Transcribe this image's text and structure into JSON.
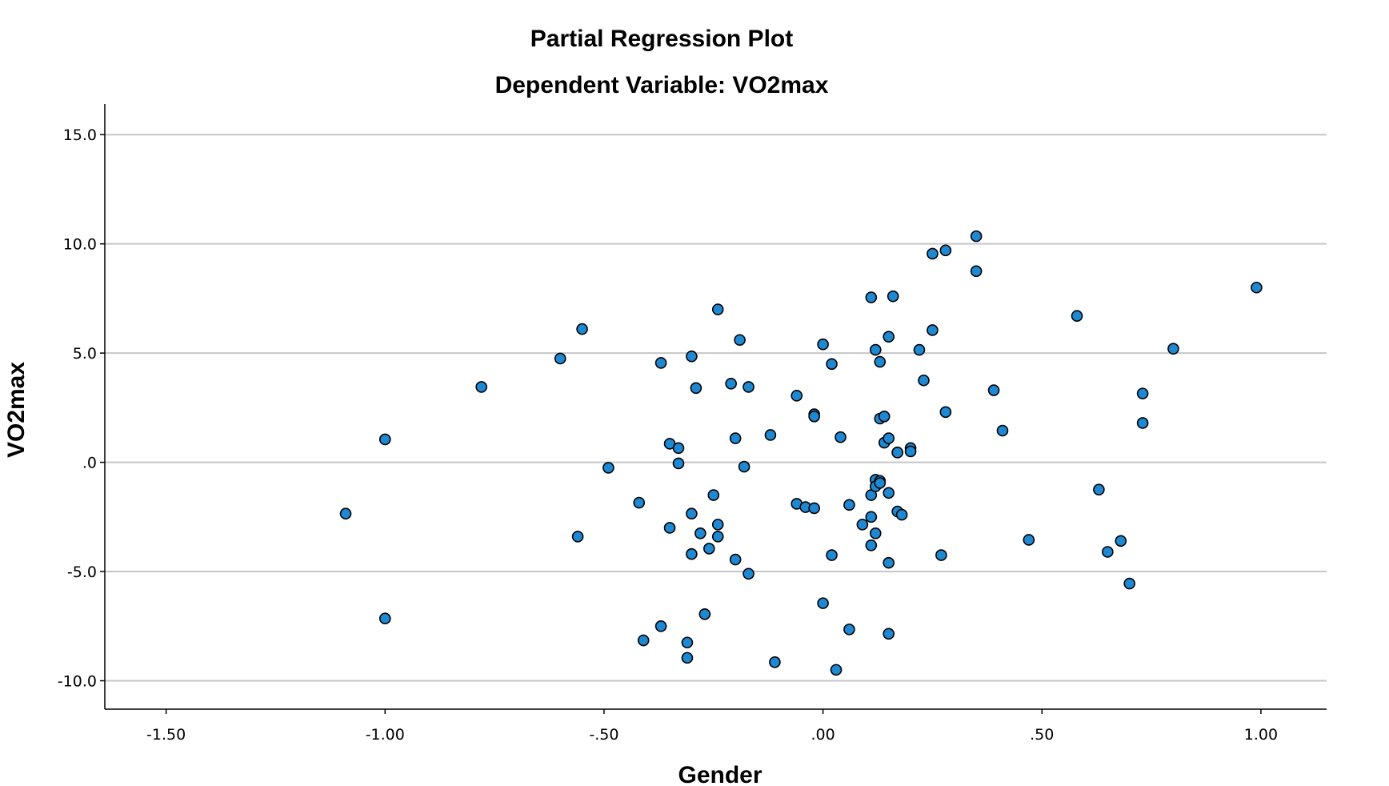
{
  "chart_data": {
    "type": "scatter",
    "title": "Partial Regression Plot",
    "subtitle": "Dependent Variable: VO2max",
    "xlabel": "Gender",
    "ylabel": "VO2max",
    "xlim": [
      -1.64,
      1.15
    ],
    "ylim": [
      -11.3,
      16.4
    ],
    "x_ticks": [
      -1.5,
      -1.0,
      -0.5,
      0.0,
      0.5,
      1.0
    ],
    "x_tick_labels": [
      "-1.50",
      "-1.00",
      "-.50",
      ".00",
      ".50",
      "1.00"
    ],
    "y_ticks": [
      -10,
      -5,
      0,
      5,
      10,
      15
    ],
    "y_tick_labels": [
      "-10.0",
      "-5.0",
      ".0",
      "5.0",
      "10.0",
      "15.0"
    ],
    "grid": "horizontal",
    "point_color": "#1e88d2",
    "points": [
      [
        -1.09,
        -2.35
      ],
      [
        -1.0,
        1.05
      ],
      [
        -1.0,
        -7.15
      ],
      [
        -0.78,
        3.45
      ],
      [
        -0.6,
        4.75
      ],
      [
        -0.56,
        -3.4
      ],
      [
        -0.55,
        6.1
      ],
      [
        -0.49,
        -0.25
      ],
      [
        -0.42,
        -1.85
      ],
      [
        -0.41,
        -8.15
      ],
      [
        -0.37,
        4.55
      ],
      [
        -0.37,
        -7.5
      ],
      [
        -0.35,
        0.85
      ],
      [
        -0.35,
        -3.0
      ],
      [
        -0.33,
        0.65
      ],
      [
        -0.33,
        -0.05
      ],
      [
        -0.31,
        -8.25
      ],
      [
        -0.31,
        -8.95
      ],
      [
        -0.3,
        -4.2
      ],
      [
        -0.3,
        -2.35
      ],
      [
        -0.3,
        4.85
      ],
      [
        -0.29,
        3.4
      ],
      [
        -0.28,
        -3.25
      ],
      [
        -0.27,
        -6.95
      ],
      [
        -0.26,
        -3.95
      ],
      [
        -0.25,
        -1.5
      ],
      [
        -0.24,
        7.0
      ],
      [
        -0.24,
        -2.85
      ],
      [
        -0.24,
        -3.4
      ],
      [
        -0.21,
        3.6
      ],
      [
        -0.2,
        1.1
      ],
      [
        -0.2,
        -4.45
      ],
      [
        -0.19,
        5.6
      ],
      [
        -0.18,
        -0.2
      ],
      [
        -0.17,
        3.45
      ],
      [
        -0.17,
        -5.1
      ],
      [
        -0.12,
        1.25
      ],
      [
        -0.11,
        -9.15
      ],
      [
        -0.06,
        -1.9
      ],
      [
        -0.06,
        3.05
      ],
      [
        -0.04,
        -2.05
      ],
      [
        -0.02,
        2.2
      ],
      [
        -0.02,
        2.1
      ],
      [
        -0.02,
        -2.1
      ],
      [
        0.0,
        5.4
      ],
      [
        0.0,
        -6.45
      ],
      [
        0.02,
        4.5
      ],
      [
        0.02,
        -4.25
      ],
      [
        0.03,
        -9.5
      ],
      [
        0.04,
        1.15
      ],
      [
        0.06,
        -1.95
      ],
      [
        0.06,
        -7.65
      ],
      [
        0.09,
        -2.85
      ],
      [
        0.11,
        7.55
      ],
      [
        0.11,
        -2.5
      ],
      [
        0.11,
        -3.8
      ],
      [
        0.11,
        -1.5
      ],
      [
        0.12,
        -3.25
      ],
      [
        0.12,
        5.15
      ],
      [
        0.12,
        -0.8
      ],
      [
        0.12,
        -1.1
      ],
      [
        0.13,
        -0.85
      ],
      [
        0.13,
        -0.95
      ],
      [
        0.13,
        4.6
      ],
      [
        0.13,
        2.0
      ],
      [
        0.14,
        2.1
      ],
      [
        0.14,
        0.9
      ],
      [
        0.15,
        -1.4
      ],
      [
        0.15,
        -4.6
      ],
      [
        0.15,
        -7.85
      ],
      [
        0.15,
        5.75
      ],
      [
        0.15,
        1.1
      ],
      [
        0.16,
        7.6
      ],
      [
        0.17,
        0.45
      ],
      [
        0.17,
        0.45
      ],
      [
        0.17,
        -2.25
      ],
      [
        0.18,
        -2.4
      ],
      [
        0.2,
        0.65
      ],
      [
        0.2,
        0.5
      ],
      [
        0.22,
        5.15
      ],
      [
        0.23,
        3.75
      ],
      [
        0.25,
        6.05
      ],
      [
        0.25,
        9.55
      ],
      [
        0.27,
        -4.25
      ],
      [
        0.28,
        9.7
      ],
      [
        0.28,
        2.3
      ],
      [
        0.35,
        10.35
      ],
      [
        0.35,
        8.75
      ],
      [
        0.39,
        3.3
      ],
      [
        0.41,
        1.45
      ],
      [
        0.47,
        -3.55
      ],
      [
        0.58,
        6.7
      ],
      [
        0.63,
        -1.25
      ],
      [
        0.65,
        -4.1
      ],
      [
        0.68,
        -3.6
      ],
      [
        0.7,
        -5.55
      ],
      [
        0.73,
        3.15
      ],
      [
        0.73,
        1.8
      ],
      [
        0.8,
        5.2
      ],
      [
        0.99,
        8.0
      ]
    ]
  }
}
